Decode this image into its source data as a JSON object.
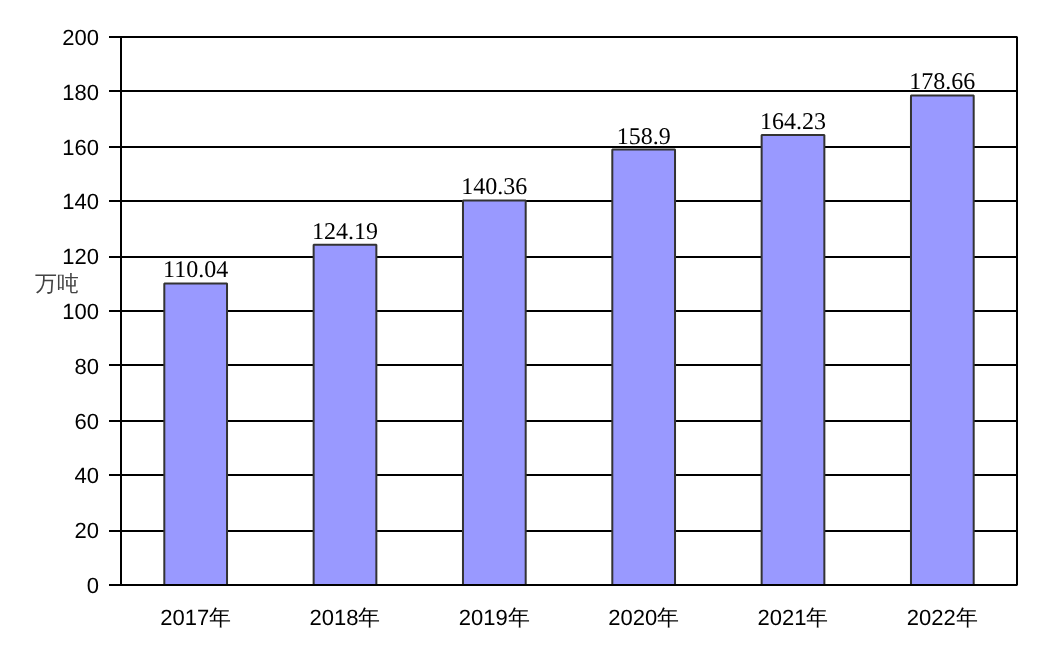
{
  "chart_data": {
    "type": "bar",
    "ylabel": "万吨",
    "categories": [
      "2017年",
      "2018年",
      "2019年",
      "2020年",
      "2021年",
      "2022年"
    ],
    "values": [
      110.04,
      124.19,
      140.36,
      158.9,
      164.23,
      178.66
    ],
    "color": "#9999ff",
    "ylim": [
      0,
      200
    ],
    "yticks": [
      0,
      20,
      40,
      60,
      80,
      100,
      120,
      140,
      160,
      180,
      200
    ],
    "grid": "y",
    "data_labels": true
  }
}
